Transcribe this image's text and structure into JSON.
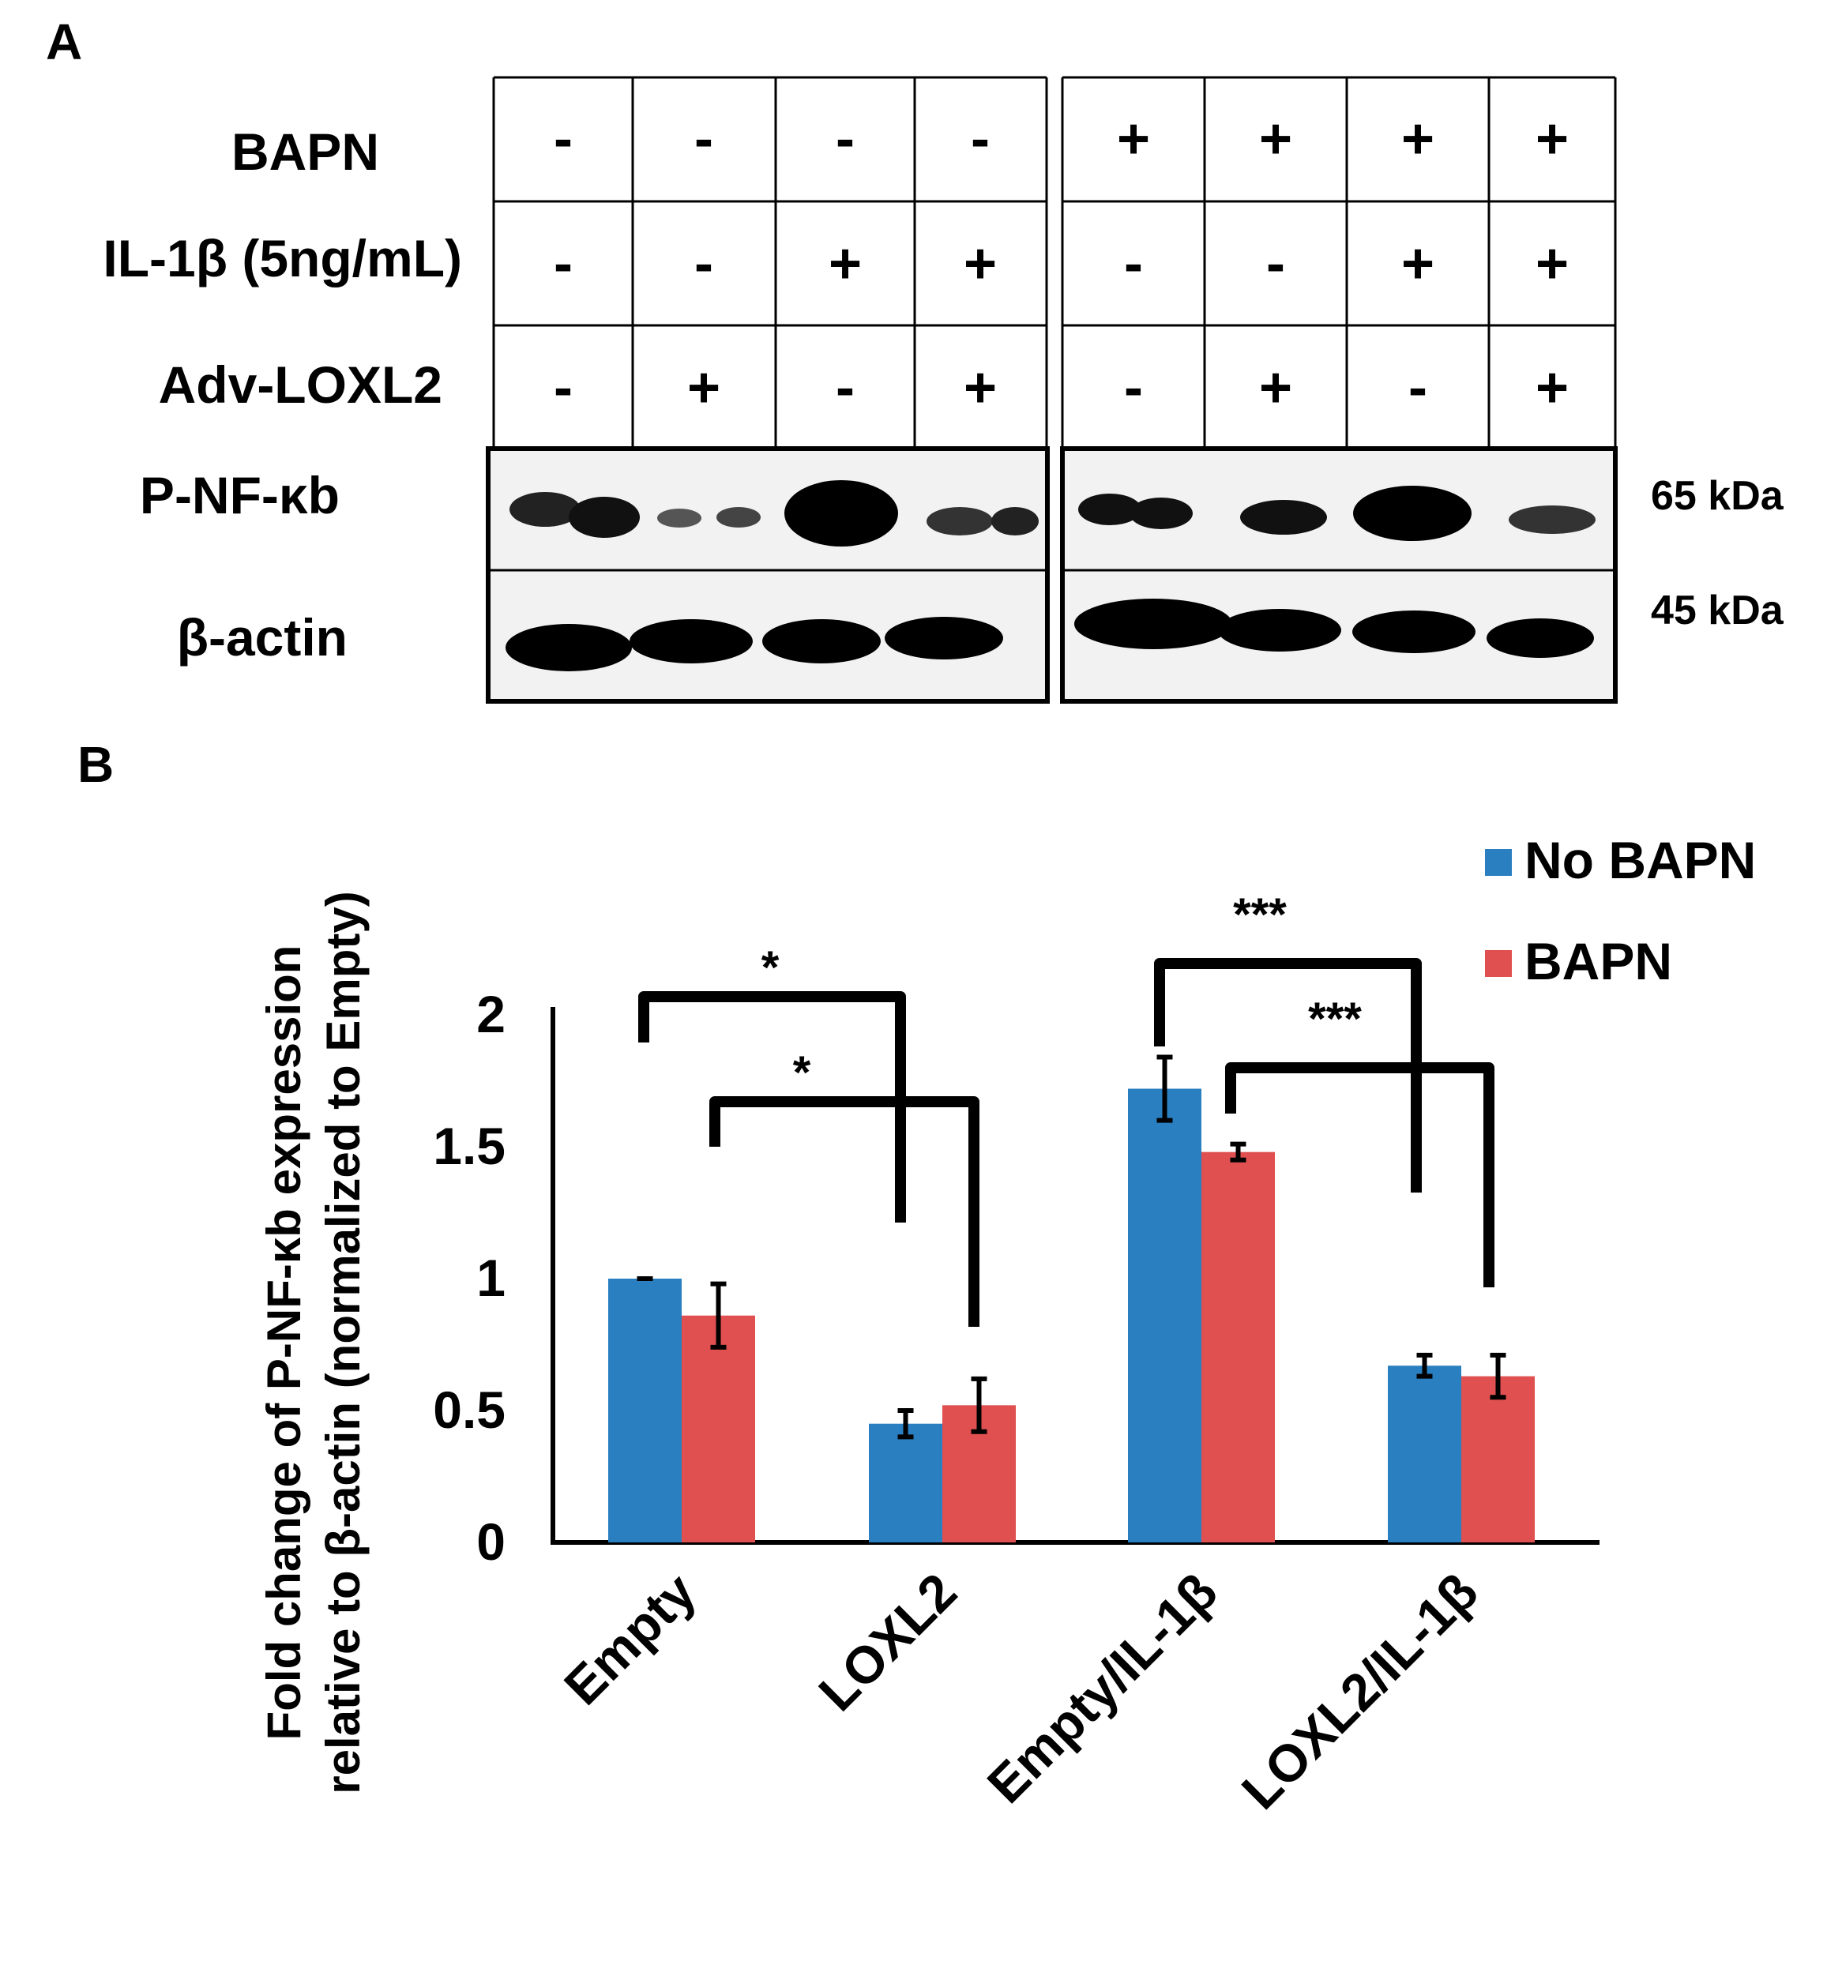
{
  "panel_a": {
    "letter": "A",
    "rows": [
      {
        "label": "BAPN",
        "signs": [
          "-",
          "-",
          "-",
          "-",
          "+",
          "+",
          "+",
          "+"
        ]
      },
      {
        "label": "IL-1β (5ng/mL)",
        "signs": [
          "-",
          "-",
          "+",
          "+",
          "-",
          "-",
          "+",
          "+"
        ]
      },
      {
        "label": "Adv-LOXL2",
        "signs": [
          "-",
          "+",
          "-",
          "+",
          "-",
          "+",
          "-",
          "+"
        ]
      }
    ],
    "blots": [
      {
        "label": "P-NF-κb",
        "size": "65 kDa"
      },
      {
        "label": "β-actin",
        "size": "45 kDa"
      }
    ]
  },
  "chart_data": {
    "panel_letter": "B",
    "type": "bar",
    "categories": [
      "Empty",
      "LOXL2",
      "Empty/IL-1β",
      "LOXL2/IL-1β"
    ],
    "series": [
      {
        "name": "No BAPN",
        "color": "#2a7fc0",
        "values": [
          1.0,
          0.45,
          1.72,
          0.67
        ],
        "errors": [
          0.0,
          0.05,
          0.12,
          0.04
        ]
      },
      {
        "name": "BAPN",
        "color": "#e05050",
        "values": [
          0.86,
          0.52,
          1.48,
          0.63
        ],
        "errors": [
          0.12,
          0.1,
          0.03,
          0.08
        ]
      }
    ],
    "ylabel_line1": "Fold change of P-NF-κb expression",
    "ylabel_line2": "relative to β-actin (normalized to Empty)",
    "ylim": [
      0,
      2
    ],
    "yticks": [
      "0",
      "0.5",
      "1",
      "1.5",
      "2"
    ],
    "legend_position": "top-right",
    "significance": [
      "*",
      "*",
      "***",
      "***"
    ]
  }
}
